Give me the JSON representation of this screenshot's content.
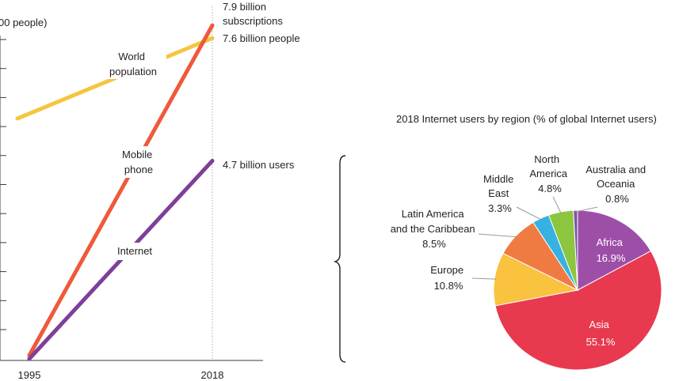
{
  "colors": {
    "world_population": "#f5c540",
    "mobile_phone": "#ee5a3a",
    "internet": "#7e3f98",
    "axis": "#3a3a3a",
    "guide": "#9a9a9a",
    "africa": "#9d4fa8",
    "asia": "#e8394f",
    "europe": "#f9c23f",
    "latin_america": "#ef7b43",
    "middle_east": "#36b2e2",
    "north_america": "#8cc63f",
    "oceania": "#7e56a5",
    "leader": "#9a9a9a",
    "slice_border": "#ffffff"
  },
  "chart_data": [
    {
      "type": "line",
      "ylabel": "00 people)",
      "x": [
        "1995",
        "2018"
      ],
      "ylim": [
        0,
        8.5
      ],
      "yticks": 11,
      "series": [
        {
          "name": "World population",
          "label_lines": [
            "World",
            "population"
          ],
          "x_start": 1995,
          "x_end": 2018,
          "values": [
            5.7,
            7.6
          ],
          "end_label": "7.6 billion people"
        },
        {
          "name": "Mobile phone",
          "label_lines": [
            "Mobile",
            "phone"
          ],
          "x_start": 1995,
          "x_end": 2018,
          "values": [
            0.1,
            7.9
          ],
          "end_label_lines": [
            "7.9 billion",
            "subscriptions"
          ]
        },
        {
          "name": "Internet",
          "label_lines": [
            "Internet"
          ],
          "x_start": 1995,
          "x_end": 2018,
          "values": [
            0.02,
            4.7
          ],
          "end_label": "4.7 billion users"
        }
      ]
    },
    {
      "type": "pie",
      "title": "2018 Internet users by region (% of global Internet users)",
      "slices": [
        {
          "name": "Africa",
          "label_lines": [
            "Africa"
          ],
          "value": 16.9,
          "pct": "16.9%"
        },
        {
          "name": "Asia",
          "label_lines": [
            "Asia"
          ],
          "value": 55.1,
          "pct": "55.1%"
        },
        {
          "name": "Europe",
          "label_lines": [
            "Europe"
          ],
          "value": 10.8,
          "pct": "10.8%"
        },
        {
          "name": "Latin America and the Caribbean",
          "label_lines": [
            "Latin America",
            "and the Caribbean"
          ],
          "value": 8.5,
          "pct": "8.5%"
        },
        {
          "name": "Middle East",
          "label_lines": [
            "Middle",
            "East"
          ],
          "value": 3.3,
          "pct": "3.3%"
        },
        {
          "name": "North America",
          "label_lines": [
            "North",
            "America"
          ],
          "value": 4.8,
          "pct": "4.8%"
        },
        {
          "name": "Australia and Oceania",
          "label_lines": [
            "Australia and",
            "Oceania"
          ],
          "value": 0.8,
          "pct": "0.8%"
        }
      ]
    }
  ]
}
